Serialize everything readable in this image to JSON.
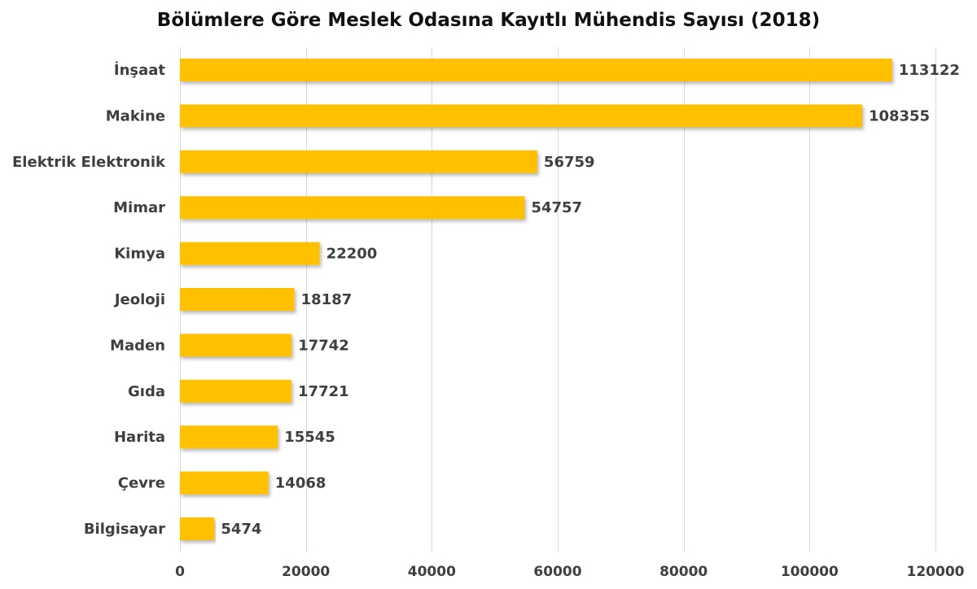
{
  "chart_data": {
    "type": "bar",
    "orientation": "horizontal",
    "title": "Bölümlere Göre Meslek Odasına Kayıtlı Mühendis Sayısı (2018)",
    "categories": [
      "İnşaat",
      "Makine",
      "Elektrik Elektronik",
      "Mimar",
      "Kimya",
      "Jeoloji",
      "Maden",
      "Gıda",
      "Harita",
      "Çevre",
      "Bilgisayar"
    ],
    "values": [
      113122,
      108355,
      56759,
      54757,
      22200,
      18187,
      17742,
      17721,
      15545,
      14068,
      5474
    ],
    "value_labels": [
      "113122",
      "108355",
      "56759",
      "54757",
      "22200",
      "18187",
      "17742",
      "17721",
      "15545",
      "14068",
      "5474"
    ],
    "xlim": [
      0,
      120000
    ],
    "x_ticks": [
      "0",
      "20000",
      "40000",
      "60000",
      "80000",
      "100000",
      "120000"
    ],
    "xlabel": "",
    "ylabel": "",
    "grid": true,
    "legend": "none",
    "bar_color": "#FFC000",
    "bar_shadow_color": "#b8b8b8",
    "grid_color": "#d9d9d9",
    "text_color": "#3f3f3f"
  }
}
